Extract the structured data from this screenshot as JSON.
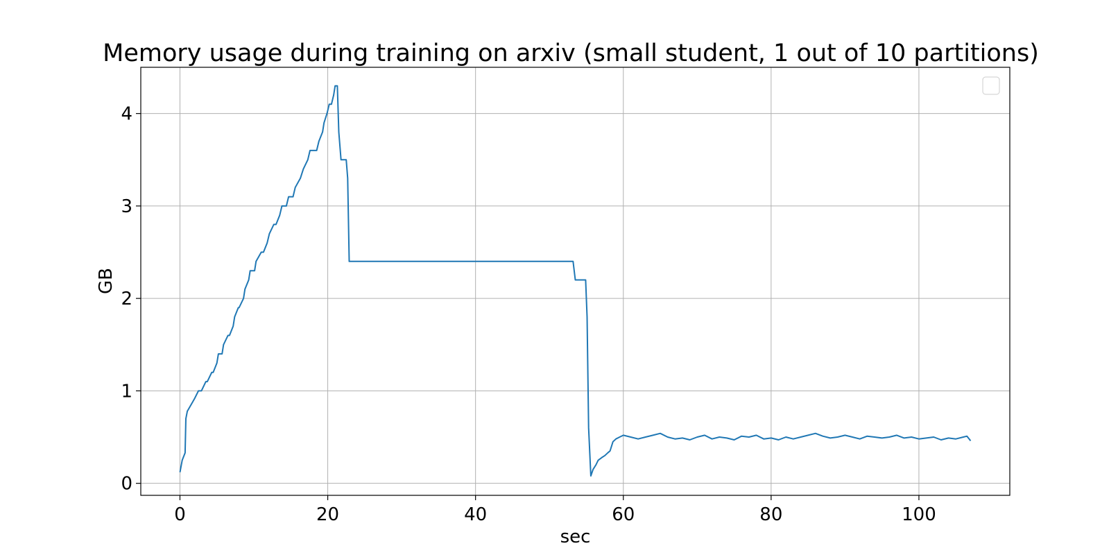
{
  "chart_data": {
    "type": "line",
    "title": "Memory usage during training on arxiv (small student, 1 out of 10 partitions)",
    "xlabel": "sec",
    "ylabel": "GB",
    "xlim": [
      -5.3,
      112.3
    ],
    "ylim": [
      -0.13,
      4.5
    ],
    "xticks": [
      0,
      20,
      40,
      60,
      80,
      100
    ],
    "yticks": [
      0,
      1,
      2,
      3,
      4
    ],
    "grid": true,
    "legend": "top-right (empty)",
    "series": [
      {
        "color": "#1f77b4",
        "x": [
          0,
          0.3,
          0.7,
          0.8,
          1.0,
          1.5,
          2.0,
          2.5,
          2.9,
          3.5,
          3.7,
          4.3,
          4.5,
          5.0,
          5.2,
          5.7,
          5.9,
          6.5,
          6.7,
          7.2,
          7.4,
          7.9,
          8.0,
          8.6,
          8.8,
          9.3,
          9.5,
          10.1,
          10.3,
          11.0,
          11.3,
          11.8,
          12.1,
          12.7,
          13.0,
          13.5,
          13.8,
          14.4,
          14.7,
          15.3,
          15.6,
          16.3,
          16.7,
          17.3,
          17.6,
          18.5,
          18.8,
          19.3,
          19.5,
          19.9,
          20.2,
          20.5,
          20.8,
          21.0,
          21.3,
          21.5,
          21.8,
          22.0,
          22.5,
          22.7,
          22.9,
          23.5,
          30,
          40,
          53.2,
          53.5,
          54.0,
          54.9,
          55.1,
          55.3,
          55.6,
          55.9,
          56.3,
          56.6,
          57.1,
          57.5,
          57.9,
          58.2,
          58.6,
          59.0,
          59.5,
          60.0,
          61,
          62,
          63,
          64,
          65,
          66,
          67,
          68,
          69,
          70,
          71,
          72,
          73,
          74,
          75,
          76,
          77,
          78,
          79,
          80,
          81,
          82,
          83,
          84,
          85,
          86,
          87,
          88,
          89,
          90,
          91,
          92,
          93,
          94,
          95,
          96,
          97,
          98,
          99,
          100,
          101,
          102,
          103,
          104,
          105,
          106,
          106.5,
          107
        ],
        "y": [
          0.12,
          0.25,
          0.33,
          0.7,
          0.78,
          0.85,
          0.92,
          1.0,
          1.0,
          1.1,
          1.1,
          1.2,
          1.2,
          1.3,
          1.4,
          1.4,
          1.5,
          1.6,
          1.6,
          1.7,
          1.8,
          1.9,
          1.9,
          2.0,
          2.1,
          2.2,
          2.3,
          2.3,
          2.4,
          2.5,
          2.5,
          2.6,
          2.7,
          2.8,
          2.8,
          2.9,
          3.0,
          3.0,
          3.1,
          3.1,
          3.2,
          3.3,
          3.4,
          3.5,
          3.6,
          3.6,
          3.7,
          3.8,
          3.9,
          4.0,
          4.1,
          4.1,
          4.2,
          4.3,
          4.3,
          3.8,
          3.5,
          3.5,
          3.5,
          3.3,
          2.4,
          2.4,
          2.4,
          2.4,
          2.4,
          2.2,
          2.2,
          2.2,
          1.8,
          0.6,
          0.08,
          0.15,
          0.2,
          0.25,
          0.28,
          0.3,
          0.33,
          0.35,
          0.45,
          0.48,
          0.5,
          0.52,
          0.5,
          0.48,
          0.5,
          0.52,
          0.54,
          0.5,
          0.48,
          0.49,
          0.47,
          0.5,
          0.52,
          0.48,
          0.5,
          0.49,
          0.47,
          0.51,
          0.5,
          0.52,
          0.48,
          0.49,
          0.47,
          0.5,
          0.48,
          0.5,
          0.52,
          0.54,
          0.51,
          0.49,
          0.5,
          0.52,
          0.5,
          0.48,
          0.51,
          0.5,
          0.49,
          0.5,
          0.52,
          0.49,
          0.5,
          0.48,
          0.49,
          0.5,
          0.47,
          0.49,
          0.48,
          0.5,
          0.51,
          0.46
        ]
      }
    ]
  }
}
